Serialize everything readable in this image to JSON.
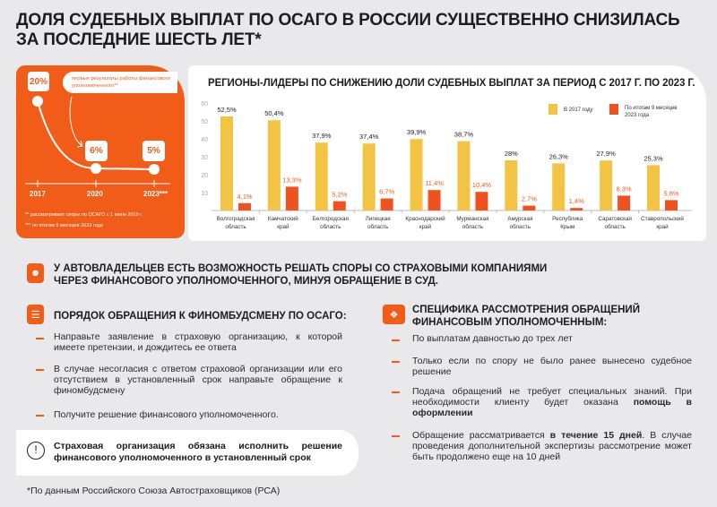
{
  "title": {
    "line1": "ДОЛЯ СУДЕБНЫХ ВЫПЛАТ ПО ОСАГО В РОССИИ СУЩЕСТВЕННО СНИЗИЛАСЬ",
    "line2": "ЗА ПОСЛЕДНИЕ ШЕСТЬ ЛЕТ*"
  },
  "trend": {
    "points": [
      {
        "year": "2017",
        "value": "20%"
      },
      {
        "year": "2020",
        "value": "6%"
      },
      {
        "year": "2023***",
        "value": "5%"
      }
    ],
    "callout": "первые результаты работы финансового уполномоченного**",
    "footnote1": "**   рассматривает споры по ОСАГО с 1 июня 2019 г.",
    "footnote2": "*** по итогам 9 месяцев 2023 года"
  },
  "chart_data": {
    "type": "bar",
    "title": "РЕГИОНЫ-ЛИДЕРЫ ПО СНИЖЕНИЮ ДОЛИ СУДЕБНЫХ ВЫПЛАТ ЗА ПЕРИОД С 2017 Г. ПО 2023 Г.",
    "categories": [
      [
        "Волгоградская",
        "область"
      ],
      [
        "Камчатский",
        "край"
      ],
      [
        "Белгородская",
        "область"
      ],
      [
        "Липецкая",
        "область"
      ],
      [
        "Краснодарский",
        "край"
      ],
      [
        "Мурманская",
        "область"
      ],
      [
        "Амурская",
        "область"
      ],
      [
        "Республика",
        "Крым"
      ],
      [
        "Саратовская",
        "область"
      ],
      [
        "Ставропольский",
        "край"
      ]
    ],
    "series": [
      {
        "name": "В 2017 году",
        "color": "#f3c443",
        "values": [
          52.5,
          50.4,
          37.9,
          37.4,
          39.9,
          38.7,
          28,
          26.3,
          27.9,
          25.3
        ],
        "labels": [
          "52,5%",
          "50,4%",
          "37,9%",
          "37,4%",
          "39,9%",
          "38,7%",
          "28%",
          "26,3%",
          "27,9%",
          "25,3%"
        ]
      },
      {
        "name": "По итогам 9 месяцев 2023 года",
        "name_lines": [
          "По итогам 9 месяцев",
          "2023 года"
        ],
        "color": "#f0521f",
        "values": [
          4.1,
          13.3,
          5.2,
          6.7,
          11.4,
          10.4,
          2.7,
          1.4,
          8.3,
          5.8
        ],
        "labels": [
          "4,1%",
          "13,3%",
          "5,2%",
          "6,7%",
          "11,4%",
          "10,4%",
          "2,7%",
          "1,4%",
          "8,3%",
          "5,8%"
        ]
      }
    ],
    "yticks": [
      10,
      20,
      30,
      40,
      50,
      60
    ],
    "ylim": [
      0,
      60
    ],
    "grid": false,
    "legend": "top-right"
  },
  "banner": {
    "line1": "У АВТОВЛАДЕЛЬЦЕВ ЕСТЬ ВОЗМОЖНОСТЬ РЕШАТЬ СПОРЫ СО СТРАХОВЫМИ КОМПАНИЯМИ",
    "line2": "ЧЕРЕЗ ФИНАНСОВОГО УПОЛНОМОЧЕННОГО, МИНУЯ ОБРАЩЕНИЕ В СУД."
  },
  "procedure": {
    "heading": "ПОРЯДОК ОБРАЩЕНИЯ К ФИНОМБУДСМЕНУ ПО ОСАГО:",
    "items": [
      "Направьте заявление в страховую организацию, к которой имеете претензии, и дождитесь ее ответа",
      "В случае несогласия с ответом страховой организации или его отсутствием в установленный срок направьте обращение к финомбудсмену",
      "Получите решение финансового уполномоченного."
    ]
  },
  "warning": "Страховая организация обязана исполнить решение финансового уполномоченного в установленный срок",
  "specifics": {
    "heading1": "СПЕЦИФИКА РАССМОТРЕНИЯ ОБРАЩЕНИЙ",
    "heading2": "ФИНАНСОВЫМ УПОЛНОМОЧЕННЫМ:",
    "items": [
      {
        "pre": "По выплатам давностью до трех лет",
        "bold": "",
        "post": ""
      },
      {
        "pre": "Только если по спору не было ранее вынесено судебное решение",
        "bold": "",
        "post": ""
      },
      {
        "pre": "Подача обращений не требует специальных знаний. При необходимости клиенту будет оказана ",
        "bold": "помощь в оформлении",
        "post": ""
      },
      {
        "pre": "Обращение рассматривается ",
        "bold": "в течение 15 дней",
        "post": ". В случае проведения дополнительной экспертизы рассмотрение может быть продолжено еще на 10 дней"
      }
    ]
  },
  "source": "*По данным Российского Союза Автостраховщиков (РСА)",
  "colors": {
    "accent": "#f25c19",
    "yellow": "#f3c443",
    "red": "#f0521f"
  }
}
